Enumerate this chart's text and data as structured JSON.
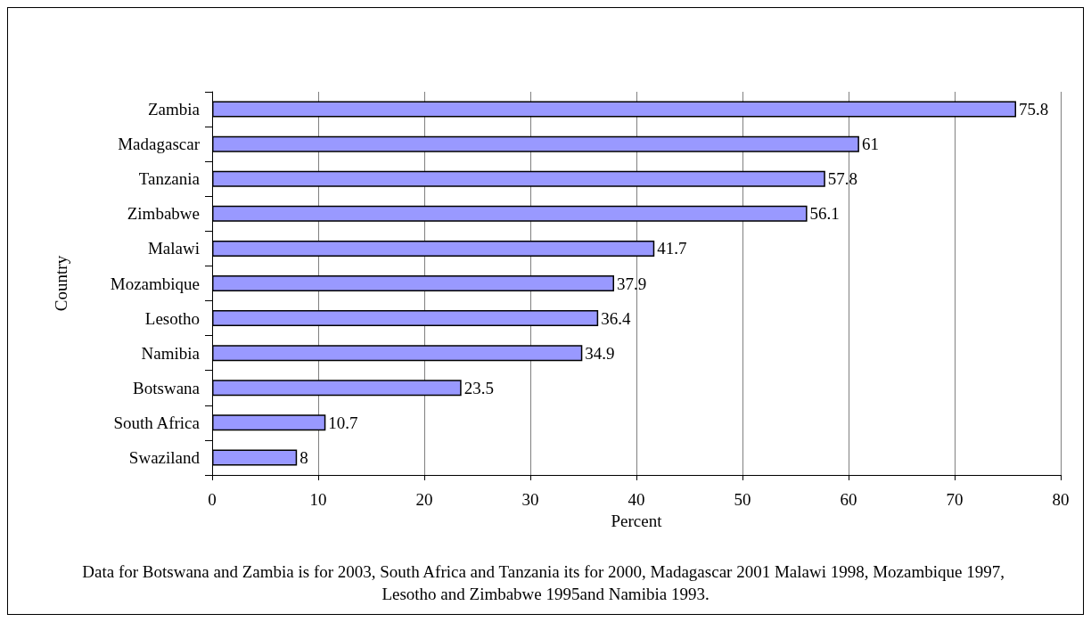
{
  "chart_data": {
    "type": "bar",
    "orientation": "horizontal",
    "xlabel": "Percent",
    "ylabel": "Country",
    "categories": [
      "Zambia",
      "Madagascar",
      "Tanzania",
      "Zimbabwe",
      "Malawi",
      "Mozambique",
      "Lesotho",
      "Namibia",
      "Botswana",
      "South Africa",
      "Swaziland"
    ],
    "values": [
      75.8,
      61,
      57.8,
      56.1,
      41.7,
      37.9,
      36.4,
      34.9,
      23.5,
      10.7,
      8
    ],
    "color": "#9999ff",
    "xlim": [
      0,
      80
    ],
    "xticks": [
      0,
      10,
      20,
      30,
      40,
      50,
      60,
      70,
      80
    ],
    "grid": "x",
    "data_labels": true,
    "annotations": [
      "Data for Botswana and Zambia is for 2003, South Africa and Tanzania its for 2000, Madagascar 2001 Malawi 1998, Mozambique 1997, Lesotho and Zimbabwe 1995and Namibia 1993."
    ]
  }
}
